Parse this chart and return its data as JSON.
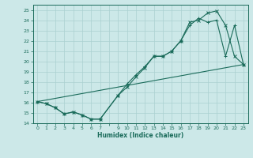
{
  "xlabel": "Humidex (Indice chaleur)",
  "ylabel": "",
  "bg_color": "#cce8e8",
  "line_color": "#1a6b5a",
  "grid_color": "#aad0d0",
  "xlim": [
    -0.5,
    23.5
  ],
  "ylim": [
    14,
    25.5
  ],
  "yticks": [
    14,
    15,
    16,
    17,
    18,
    19,
    20,
    21,
    22,
    23,
    24,
    25
  ],
  "line1_x": [
    0,
    1,
    2,
    3,
    4,
    5,
    6,
    7,
    9,
    10,
    11,
    12,
    13,
    14,
    15,
    16,
    17,
    18,
    19,
    20,
    21,
    22,
    23
  ],
  "line1_y": [
    16.1,
    15.9,
    15.5,
    14.9,
    15.1,
    14.8,
    14.4,
    14.4,
    16.7,
    17.8,
    18.7,
    19.5,
    20.5,
    20.5,
    21.0,
    22.0,
    23.5,
    24.2,
    23.8,
    24.0,
    20.5,
    23.5,
    19.7
  ],
  "line2_x": [
    0,
    1,
    2,
    3,
    4,
    5,
    6,
    7,
    9,
    10,
    11,
    12,
    13,
    14,
    15,
    16,
    17,
    18,
    19,
    20,
    21,
    22,
    23
  ],
  "line2_y": [
    16.1,
    15.9,
    15.5,
    14.9,
    15.1,
    14.8,
    14.4,
    14.4,
    16.7,
    17.5,
    18.5,
    19.4,
    20.5,
    20.5,
    21.0,
    22.0,
    23.8,
    24.0,
    24.7,
    24.9,
    23.5,
    20.5,
    19.7
  ],
  "line3_x": [
    0,
    23
  ],
  "line3_y": [
    16.1,
    19.7
  ]
}
